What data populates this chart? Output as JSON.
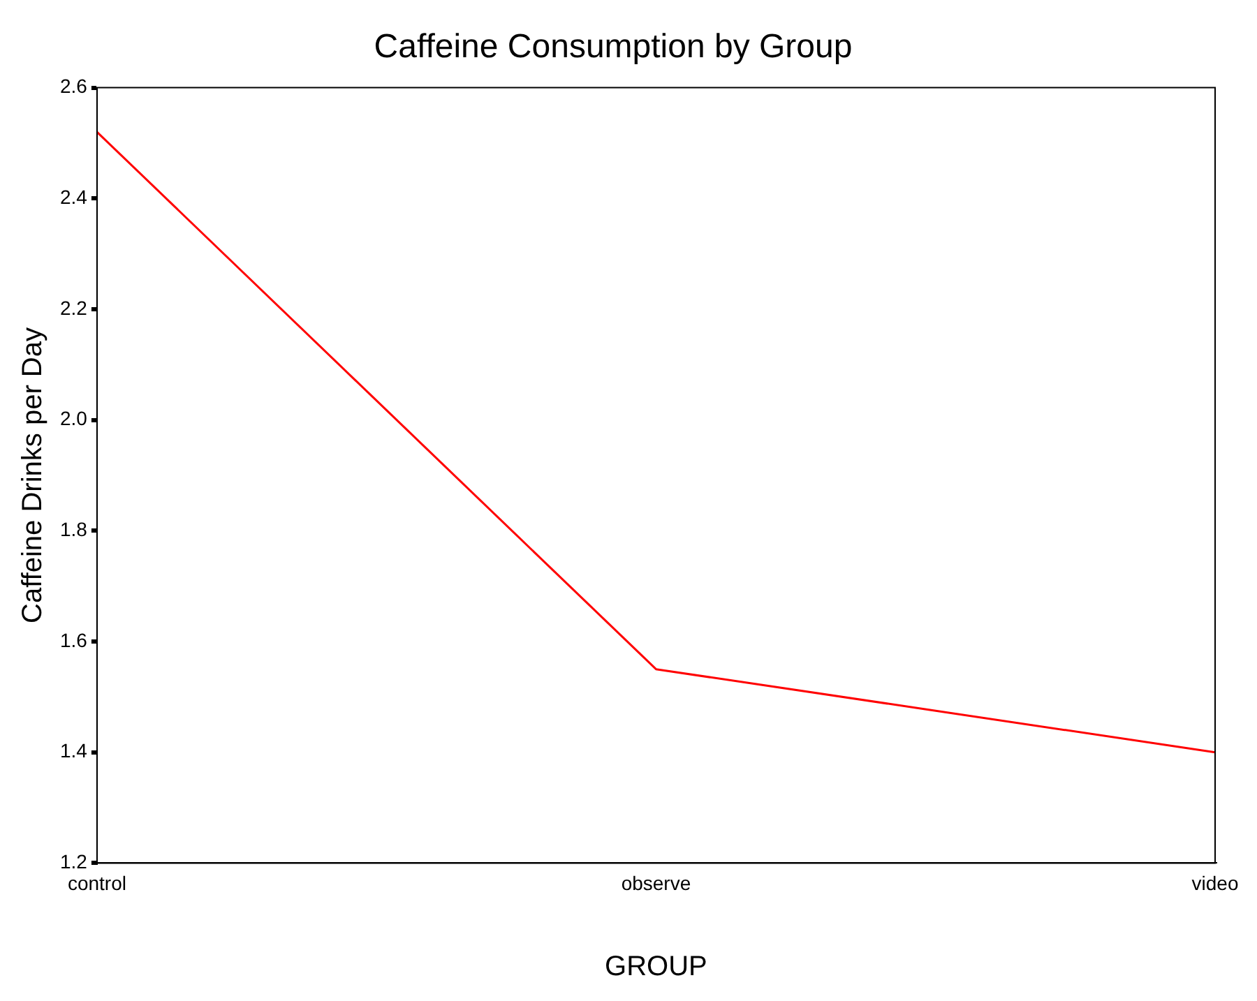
{
  "chart_data": {
    "type": "line",
    "title": "Caffeine Consumption by Group",
    "xlabel": "GROUP",
    "ylabel": "Caffeine Drinks per Day",
    "categories": [
      "control",
      "observe",
      "video"
    ],
    "series": [
      {
        "color": "#ff0000",
        "values": [
          2.52,
          1.55,
          1.4
        ]
      }
    ],
    "ylim": [
      1.2,
      2.6
    ],
    "yticks": [
      {
        "value": 1.2,
        "label": "1.2"
      },
      {
        "value": 1.4,
        "label": "1.4"
      },
      {
        "value": 1.6,
        "label": "1.6"
      },
      {
        "value": 1.8,
        "label": "1.8"
      },
      {
        "value": 2.0,
        "label": "2.0"
      },
      {
        "value": 2.2,
        "label": "2.2"
      },
      {
        "value": 2.4,
        "label": "2.4"
      },
      {
        "value": 2.6,
        "label": "2.6"
      }
    ],
    "grid": false,
    "legend": false,
    "marker": "none",
    "line_style": "solid"
  }
}
